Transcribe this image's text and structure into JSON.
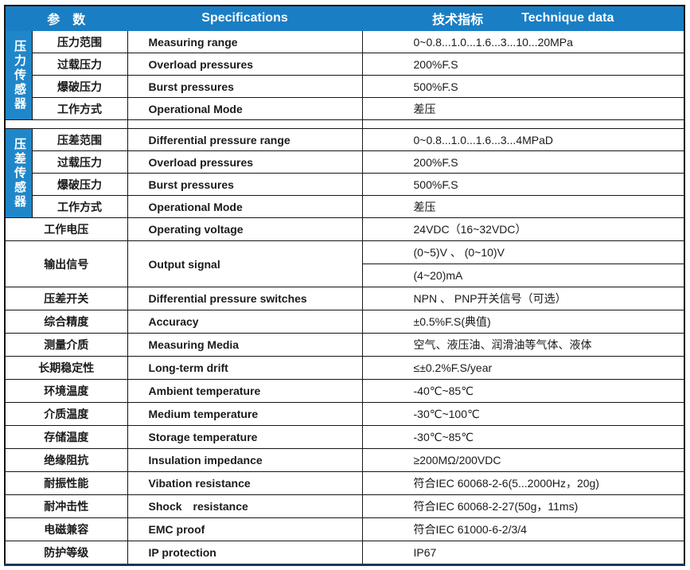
{
  "table": {
    "header": {
      "param": "参　数",
      "spec": "Specifications",
      "tech_cn": "技术指标",
      "tech_en": "Technique data"
    },
    "sidebar": {
      "s1": "压力传感器",
      "s2": "压差传感器"
    },
    "sec1": [
      {
        "cn": "压力范围",
        "en": "Measuring range",
        "val": "0~0.8...1.0...1.6...3...10...20MPa"
      },
      {
        "cn": "过载压力",
        "en": "Overload pressures",
        "val": "200%F.S"
      },
      {
        "cn": "爆破压力",
        "en": "Burst pressures",
        "val": "500%F.S"
      },
      {
        "cn": "工作方式",
        "en": "Operational Mode",
        "val": "差压"
      }
    ],
    "sec2": [
      {
        "cn": "压差范围",
        "en": "Differential pressure range",
        "val": "0~0.8...1.0...1.6...3...4MPaD"
      },
      {
        "cn": "过载压力",
        "en": "Overload pressures",
        "val": "200%F.S"
      },
      {
        "cn": "爆破压力",
        "en": "Burst pressures",
        "val": "500%F.S"
      },
      {
        "cn": "工作方式",
        "en": "Operational Mode",
        "val": "差压"
      }
    ],
    "general": [
      {
        "cn": "工作电压",
        "en": "Operating voltage",
        "val": "24VDC（16~32VDC）"
      },
      {
        "cn": "输出信号",
        "en": "Output signal",
        "val": "(0~5)V 、 (0~10)V",
        "val2": "(4~20)mA"
      },
      {
        "cn": "压差开关",
        "en": "Differential pressure switches",
        "val": "NPN 、 PNP开关信号（可选）"
      },
      {
        "cn": "综合精度",
        "en": "Accuracy",
        "val": "±0.5%F.S(典值)"
      },
      {
        "cn": "测量介质",
        "en": "Measuring Media",
        "val": "空气、液压油、润滑油等气体、液体"
      },
      {
        "cn": "长期稳定性",
        "en": "Long-term drift",
        "val": "≤±0.2%F.S/year"
      },
      {
        "cn": "环境温度",
        "en": "Ambient temperature",
        "val": "-40℃~85℃"
      },
      {
        "cn": "介质温度",
        "en": "Medium temperature",
        "val": "-30℃~100℃"
      },
      {
        "cn": "存储温度",
        "en": "Storage temperature",
        "val": "-30℃~85℃"
      },
      {
        "cn": "绝缘阻抗",
        "en": "Insulation impedance",
        "val": "≥200MΩ/200VDC"
      },
      {
        "cn": "耐振性能",
        "en": "Vibation resistance",
        "val": "符合IEC 60068-2-6(5...2000Hz，20g)"
      },
      {
        "cn": "耐冲击性",
        "en": "Shock　resistance",
        "val": "符合IEC 60068-2-27(50g，11ms)"
      },
      {
        "cn": "电磁兼容",
        "en": "EMC proof",
        "val": "符合IEC 61000-6-2/3/4"
      },
      {
        "cn": "防护等级",
        "en": "IP protection",
        "val": "IP67"
      }
    ],
    "colors": {
      "header_bg": "#1a7ec4",
      "sidebar_bg": "#1f87c9",
      "bottom_border": "#17375d"
    }
  }
}
